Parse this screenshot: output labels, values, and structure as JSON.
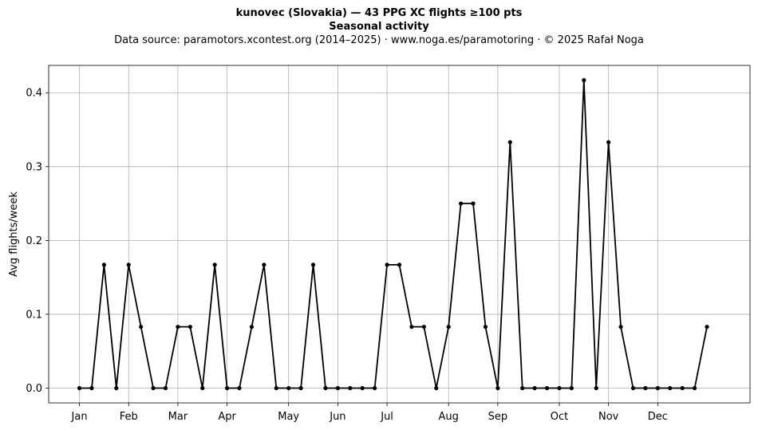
{
  "chart_data": {
    "type": "line",
    "title": "kunovec (Slovakia)  —  43 PPG XC flights ≥100 pts",
    "subtitle": "Seasonal activity",
    "source": "Data source: paramotors.xcontest.org (2014–2025)  ·  www.noga.es/paramotoring  ·  © 2025 Rafał Noga",
    "xlabel": "",
    "ylabel": "Avg flights/week",
    "xlim": [
      -2.5,
      54.5
    ],
    "ylim": [
      -0.02,
      0.437
    ],
    "grid": true,
    "x_ticks": [
      {
        "label": "Jan",
        "week": 0
      },
      {
        "label": "Feb",
        "week": 4
      },
      {
        "label": "Mar",
        "week": 8
      },
      {
        "label": "Apr",
        "week": 12
      },
      {
        "label": "May",
        "week": 17
      },
      {
        "label": "Jun",
        "week": 21
      },
      {
        "label": "Jul",
        "week": 25
      },
      {
        "label": "Aug",
        "week": 30
      },
      {
        "label": "Sep",
        "week": 34
      },
      {
        "label": "Oct",
        "week": 39
      },
      {
        "label": "Nov",
        "week": 43
      },
      {
        "label": "Dec",
        "week": 47
      }
    ],
    "y_ticks": [
      0.0,
      0.1,
      0.2,
      0.3,
      0.4
    ],
    "y_tick_labels": [
      "0.0",
      "0.1",
      "0.2",
      "0.3",
      "0.4"
    ],
    "color": "#000000",
    "series": [
      {
        "x": [
          0,
          1,
          2,
          3,
          4,
          5,
          6,
          7,
          8,
          9,
          10,
          11,
          12,
          13,
          14,
          15,
          16,
          17,
          18,
          19,
          20,
          21,
          22,
          23,
          24,
          25,
          26,
          27,
          28,
          29,
          30,
          31,
          32,
          33,
          34,
          35,
          36,
          37,
          38,
          39,
          40,
          41,
          42,
          43,
          44,
          45,
          46,
          47,
          48,
          49,
          50,
          51
        ],
        "values": [
          0,
          0,
          0.167,
          0,
          0.167,
          0.083,
          0,
          0,
          0.083,
          0.083,
          0,
          0.167,
          0,
          0,
          0.083,
          0.167,
          0,
          0,
          0,
          0.167,
          0,
          0,
          0,
          0,
          0,
          0.167,
          0.167,
          0.083,
          0.083,
          0,
          0.083,
          0.25,
          0.25,
          0.083,
          0,
          0.333,
          0,
          0,
          0,
          0,
          0,
          0.417,
          0,
          0.333,
          0.083,
          0,
          0,
          0,
          0,
          0,
          0,
          0.083
        ]
      }
    ]
  }
}
